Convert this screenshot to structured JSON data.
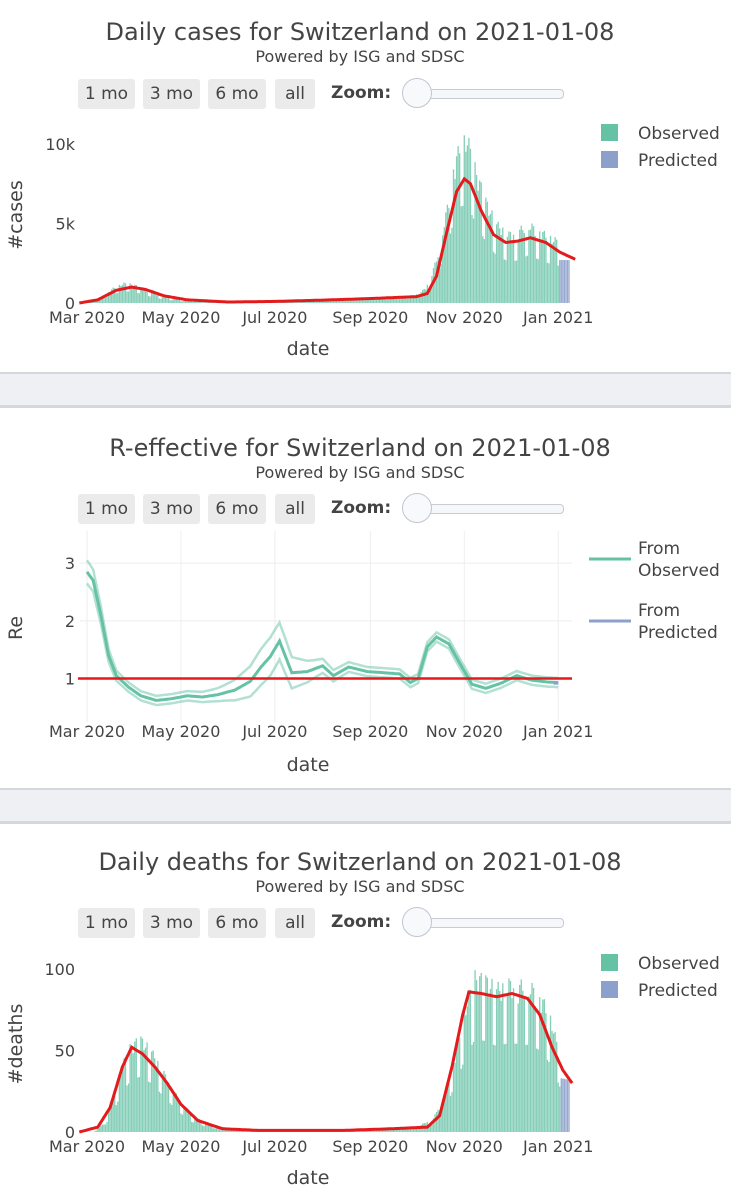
{
  "controls": {
    "range_buttons": [
      "1 mo",
      "3 mo",
      "6 mo",
      "all"
    ],
    "zoom_label": "Zoom:"
  },
  "colors": {
    "observed": "#66c2a5",
    "predicted": "#8da0cb",
    "fit_line": "#e41a1c",
    "grid": "#eeeeee"
  },
  "chart_data": [
    {
      "type": "bar",
      "title": "Daily cases for Switzerland on 2021-01-08",
      "subtitle": "Powered by ISG and SDSC",
      "xlabel": "date",
      "ylabel": "#cases",
      "x_ticks": [
        "Mar 2020",
        "May 2020",
        "Jul 2020",
        "Sep 2020",
        "Nov 2020",
        "Jan 2021"
      ],
      "y_ticks": [
        "0",
        "5k",
        "10k"
      ],
      "ylim": [
        0,
        11000
      ],
      "grid": false,
      "legend": [
        "Observed",
        "Predicted"
      ],
      "series": [
        {
          "name": "Observed",
          "kind": "bar",
          "points": [
            [
              "2020-03-01",
              50
            ],
            [
              "2020-03-10",
              300
            ],
            [
              "2020-03-18",
              900
            ],
            [
              "2020-03-25",
              1200
            ],
            [
              "2020-04-01",
              1100
            ],
            [
              "2020-04-10",
              700
            ],
            [
              "2020-04-20",
              350
            ],
            [
              "2020-05-01",
              180
            ],
            [
              "2020-05-15",
              60
            ],
            [
              "2020-06-01",
              25
            ],
            [
              "2020-06-15",
              20
            ],
            [
              "2020-07-01",
              60
            ],
            [
              "2020-07-15",
              120
            ],
            [
              "2020-08-01",
              180
            ],
            [
              "2020-08-15",
              230
            ],
            [
              "2020-09-01",
              300
            ],
            [
              "2020-09-15",
              380
            ],
            [
              "2020-09-30",
              450
            ],
            [
              "2020-10-07",
              900
            ],
            [
              "2020-10-14",
              2600
            ],
            [
              "2020-10-20",
              5300
            ],
            [
              "2020-10-25",
              8200
            ],
            [
              "2020-10-30",
              9800
            ],
            [
              "2020-11-03",
              10000
            ],
            [
              "2020-11-08",
              8200
            ],
            [
              "2020-11-15",
              6200
            ],
            [
              "2020-11-22",
              4800
            ],
            [
              "2020-11-30",
              4200
            ],
            [
              "2020-12-05",
              4300
            ],
            [
              "2020-12-12",
              4800
            ],
            [
              "2020-12-20",
              4400
            ],
            [
              "2020-12-28",
              3900
            ],
            [
              "2021-01-04",
              3700
            ],
            [
              "2021-01-08",
              3300
            ]
          ]
        },
        {
          "name": "Predicted",
          "kind": "bar",
          "points": [
            [
              "2021-01-02",
              2700
            ],
            [
              "2021-01-08",
              2700
            ]
          ]
        },
        {
          "name": "fit",
          "kind": "line",
          "points": [
            [
              "2020-02-25",
              0
            ],
            [
              "2020-03-08",
              200
            ],
            [
              "2020-03-20",
              800
            ],
            [
              "2020-03-30",
              1000
            ],
            [
              "2020-04-08",
              850
            ],
            [
              "2020-04-20",
              450
            ],
            [
              "2020-05-05",
              200
            ],
            [
              "2020-06-01",
              60
            ],
            [
              "2020-07-01",
              100
            ],
            [
              "2020-08-01",
              180
            ],
            [
              "2020-09-01",
              280
            ],
            [
              "2020-10-01",
              400
            ],
            [
              "2020-10-08",
              600
            ],
            [
              "2020-10-14",
              1700
            ],
            [
              "2020-10-20",
              4200
            ],
            [
              "2020-10-27",
              7000
            ],
            [
              "2020-11-01",
              7800
            ],
            [
              "2020-11-05",
              7500
            ],
            [
              "2020-11-12",
              5800
            ],
            [
              "2020-11-20",
              4300
            ],
            [
              "2020-11-28",
              3800
            ],
            [
              "2020-12-06",
              3900
            ],
            [
              "2020-12-14",
              4100
            ],
            [
              "2020-12-24",
              3800
            ],
            [
              "2021-01-02",
              3200
            ],
            [
              "2021-01-12",
              2750
            ]
          ]
        }
      ]
    },
    {
      "type": "line",
      "title": "R-effective for Switzerland on 2021-01-08",
      "subtitle": "Powered by ISG and SDSC",
      "xlabel": "date",
      "ylabel": "Re",
      "x_ticks": [
        "Mar 2020",
        "May 2020",
        "Jul 2020",
        "Sep 2020",
        "Nov 2020",
        "Jan 2021"
      ],
      "y_ticks": [
        "1",
        "2",
        "3"
      ],
      "ylim": [
        0.35,
        3.35
      ],
      "grid": true,
      "legend": [
        "From Observed",
        "From Predicted"
      ],
      "reference_line": 1,
      "series": [
        {
          "name": "From Observed",
          "kind": "line",
          "points": [
            [
              "2020-03-01",
              2.85
            ],
            [
              "2020-03-05",
              2.7
            ],
            [
              "2020-03-10",
              2.1
            ],
            [
              "2020-03-15",
              1.4
            ],
            [
              "2020-03-20",
              1.05
            ],
            [
              "2020-03-28",
              0.85
            ],
            [
              "2020-04-05",
              0.7
            ],
            [
              "2020-04-15",
              0.62
            ],
            [
              "2020-04-25",
              0.65
            ],
            [
              "2020-05-05",
              0.7
            ],
            [
              "2020-05-15",
              0.68
            ],
            [
              "2020-05-25",
              0.72
            ],
            [
              "2020-06-05",
              0.8
            ],
            [
              "2020-06-15",
              0.95
            ],
            [
              "2020-06-22",
              1.2
            ],
            [
              "2020-06-28",
              1.38
            ],
            [
              "2020-07-04",
              1.65
            ],
            [
              "2020-07-12",
              1.1
            ],
            [
              "2020-07-22",
              1.12
            ],
            [
              "2020-08-01",
              1.22
            ],
            [
              "2020-08-08",
              1.05
            ],
            [
              "2020-08-18",
              1.2
            ],
            [
              "2020-08-30",
              1.12
            ],
            [
              "2020-09-10",
              1.1
            ],
            [
              "2020-09-20",
              1.08
            ],
            [
              "2020-09-27",
              0.93
            ],
            [
              "2020-10-02",
              1.0
            ],
            [
              "2020-10-08",
              1.55
            ],
            [
              "2020-10-14",
              1.72
            ],
            [
              "2020-10-22",
              1.6
            ],
            [
              "2020-10-30",
              1.22
            ],
            [
              "2020-11-06",
              0.9
            ],
            [
              "2020-11-15",
              0.83
            ],
            [
              "2020-11-25",
              0.92
            ],
            [
              "2020-12-05",
              1.05
            ],
            [
              "2020-12-15",
              0.97
            ],
            [
              "2020-12-25",
              0.94
            ],
            [
              "2021-01-01",
              0.93
            ]
          ]
        },
        {
          "name": "From Predicted",
          "kind": "line",
          "points": [
            [
              "2020-12-29",
              0.92
            ],
            [
              "2021-01-01",
              0.92
            ]
          ]
        }
      ]
    },
    {
      "type": "bar",
      "title": "Daily deaths for Switzerland on 2021-01-08",
      "subtitle": "Powered by ISG and SDSC",
      "xlabel": "date",
      "ylabel": "#deaths",
      "x_ticks": [
        "Mar 2020",
        "May 2020",
        "Jul 2020",
        "Sep 2020",
        "Nov 2020",
        "Jan 2021"
      ],
      "y_ticks": [
        "0",
        "50",
        "100"
      ],
      "ylim": [
        0,
        108
      ],
      "grid": false,
      "legend": [
        "Observed",
        "Predicted"
      ],
      "series": [
        {
          "name": "Observed",
          "kind": "bar",
          "points": [
            [
              "2020-03-05",
              0
            ],
            [
              "2020-03-12",
              5
            ],
            [
              "2020-03-18",
              20
            ],
            [
              "2020-03-24",
              40
            ],
            [
              "2020-03-30",
              52
            ],
            [
              "2020-04-05",
              55
            ],
            [
              "2020-04-12",
              48
            ],
            [
              "2020-04-20",
              35
            ],
            [
              "2020-04-28",
              22
            ],
            [
              "2020-05-08",
              10
            ],
            [
              "2020-05-20",
              4
            ],
            [
              "2020-06-10",
              1
            ],
            [
              "2020-07-10",
              1
            ],
            [
              "2020-08-10",
              1
            ],
            [
              "2020-09-10",
              2
            ],
            [
              "2020-10-01",
              3
            ],
            [
              "2020-10-12",
              8
            ],
            [
              "2020-10-20",
              25
            ],
            [
              "2020-10-27",
              50
            ],
            [
              "2020-11-02",
              75
            ],
            [
              "2020-11-08",
              92
            ],
            [
              "2020-11-15",
              90
            ],
            [
              "2020-11-22",
              85
            ],
            [
              "2020-11-30",
              88
            ],
            [
              "2020-12-07",
              87
            ],
            [
              "2020-12-14",
              86
            ],
            [
              "2020-12-21",
              80
            ],
            [
              "2020-12-28",
              65
            ],
            [
              "2021-01-02",
              45
            ],
            [
              "2021-01-05",
              38
            ]
          ]
        },
        {
          "name": "Predicted",
          "kind": "bar",
          "points": [
            [
              "2021-01-03",
              33
            ],
            [
              "2021-01-08",
              32
            ]
          ]
        },
        {
          "name": "fit",
          "kind": "line",
          "points": [
            [
              "2020-02-25",
              0
            ],
            [
              "2020-03-08",
              3
            ],
            [
              "2020-03-16",
              15
            ],
            [
              "2020-03-24",
              40
            ],
            [
              "2020-03-30",
              52
            ],
            [
              "2020-04-06",
              48
            ],
            [
              "2020-04-14",
              40
            ],
            [
              "2020-04-22",
              30
            ],
            [
              "2020-05-01",
              17
            ],
            [
              "2020-05-12",
              7
            ],
            [
              "2020-05-28",
              2
            ],
            [
              "2020-06-20",
              1
            ],
            [
              "2020-08-15",
              1
            ],
            [
              "2020-09-15",
              2
            ],
            [
              "2020-10-08",
              3
            ],
            [
              "2020-10-16",
              10
            ],
            [
              "2020-10-24",
              40
            ],
            [
              "2020-10-31",
              72
            ],
            [
              "2020-11-04",
              86
            ],
            [
              "2020-11-12",
              85
            ],
            [
              "2020-11-22",
              83
            ],
            [
              "2020-12-02",
              85
            ],
            [
              "2020-12-12",
              82
            ],
            [
              "2020-12-20",
              72
            ],
            [
              "2020-12-28",
              52
            ],
            [
              "2021-01-04",
              38
            ],
            [
              "2021-01-10",
              30
            ]
          ]
        }
      ]
    }
  ]
}
